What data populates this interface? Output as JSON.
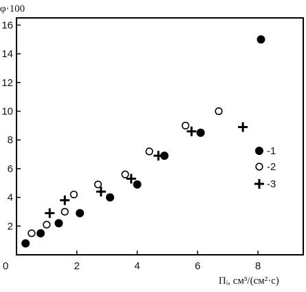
{
  "chart_data": {
    "type": "scatter",
    "title": "",
    "xlabel": "Пᵢ, см³/(см²·с)",
    "ylabel": "φ·100",
    "xlim": [
      0,
      9.5
    ],
    "ylim": [
      0,
      16.5
    ],
    "x_ticks": [
      "0",
      "2",
      "4",
      "6",
      "8"
    ],
    "y_ticks": [
      "2",
      "4",
      "6",
      "8",
      "10",
      "12",
      "14",
      "16"
    ],
    "grid": false,
    "legend_position": "right",
    "series": [
      {
        "name": "1",
        "marker": "filled-circle",
        "color": "#000000",
        "points": [
          {
            "x": 0.3,
            "y": 0.8
          },
          {
            "x": 0.8,
            "y": 1.5
          },
          {
            "x": 1.4,
            "y": 2.2
          },
          {
            "x": 2.1,
            "y": 2.9
          },
          {
            "x": 3.1,
            "y": 4.0
          },
          {
            "x": 4.0,
            "y": 4.9
          },
          {
            "x": 4.9,
            "y": 6.9
          },
          {
            "x": 6.1,
            "y": 8.5
          },
          {
            "x": 8.1,
            "y": 15.0
          }
        ]
      },
      {
        "name": "2",
        "marker": "open-circle",
        "color": "#000000",
        "points": [
          {
            "x": 0.5,
            "y": 1.5
          },
          {
            "x": 1.0,
            "y": 2.1
          },
          {
            "x": 1.6,
            "y": 3.0
          },
          {
            "x": 1.9,
            "y": 4.2
          },
          {
            "x": 2.7,
            "y": 4.9
          },
          {
            "x": 3.6,
            "y": 5.6
          },
          {
            "x": 4.4,
            "y": 7.2
          },
          {
            "x": 5.6,
            "y": 9.0
          },
          {
            "x": 6.7,
            "y": 10.0
          }
        ]
      },
      {
        "name": "3",
        "marker": "plus",
        "color": "#000000",
        "points": [
          {
            "x": 1.1,
            "y": 2.9
          },
          {
            "x": 1.6,
            "y": 3.8
          },
          {
            "x": 2.8,
            "y": 4.4
          },
          {
            "x": 3.8,
            "y": 5.3
          },
          {
            "x": 4.7,
            "y": 6.9
          },
          {
            "x": 5.8,
            "y": 8.6
          },
          {
            "x": 7.5,
            "y": 8.9
          }
        ]
      }
    ],
    "legend": [
      {
        "label": "-1",
        "marker": "filled-circle"
      },
      {
        "label": "-2",
        "marker": "open-circle"
      },
      {
        "label": "-3",
        "marker": "plus"
      }
    ]
  }
}
